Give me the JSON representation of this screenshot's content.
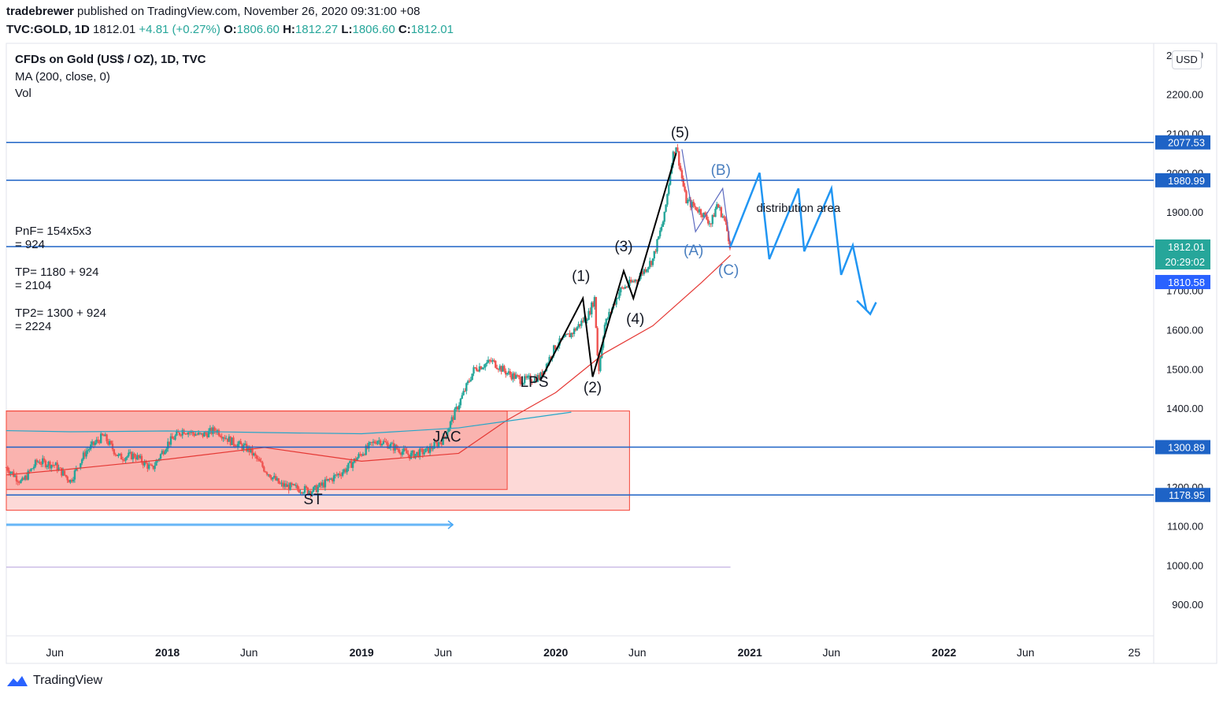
{
  "header": {
    "author": "tradebrewer",
    "published_text": "published on TradingView.com, November 26, 2020 09:31:00 +08",
    "symbol": "TVC:GOLD, 1D",
    "last": "1812.01",
    "change": "+4.81 (+0.27%)",
    "o_label": "O:",
    "o": "1806.60",
    "h_label": "H:",
    "h": "1812.27",
    "l_label": "L:",
    "l": "1806.60",
    "c_label": "C:",
    "c": "1812.01"
  },
  "legend": {
    "title": "CFDs on Gold (US$ / OZ), 1D, TVC",
    "ma": "MA (200, close, 0)",
    "vol": "Vol"
  },
  "currency_button": "USD",
  "notes": {
    "pnf_1": "PnF= 154x5x3",
    "pnf_2": "= 924",
    "tp_1": "TP= 1180 + 924",
    "tp_2": "= 2104",
    "tp2_1": "TP2= 1300 + 924",
    "tp2_2": "= 2224"
  },
  "footer": {
    "brand": "TradingView"
  },
  "colors": {
    "candle_up": "#26a69a",
    "candle_down": "#ef5350",
    "ma": "#e53935",
    "ma2": "#26a6c8",
    "hline": "#1e63c6",
    "projection": "#2196f3",
    "box": "#f44336"
  },
  "chart_data": {
    "type": "candlestick",
    "y_axis": {
      "tick_labels": [
        "900.00",
        "1000.00",
        "1100.00",
        "1200.00",
        "1300.00",
        "1400.00",
        "1500.00",
        "1600.00",
        "1700.00",
        "1800.00",
        "1900.00",
        "2000.00",
        "2100.00",
        "2200.00",
        "2300.00"
      ],
      "ylim": [
        820,
        2330
      ]
    },
    "x_axis": {
      "tick_labels": [
        "Jun",
        "2018",
        "Jun",
        "2019",
        "Jun",
        "2020",
        "Jun",
        "2021",
        "Jun",
        "2022",
        "Jun",
        "25"
      ],
      "tick_dates": [
        2017.42,
        2018.0,
        2018.42,
        2019.0,
        2019.42,
        2020.0,
        2020.42,
        2021.0,
        2021.42,
        2022.0,
        2022.42,
        2022.98
      ],
      "xlim": [
        2017.17,
        2023.08
      ]
    },
    "price_path": [
      [
        2017.17,
        1250
      ],
      [
        2017.25,
        1210
      ],
      [
        2017.33,
        1265
      ],
      [
        2017.42,
        1255
      ],
      [
        2017.5,
        1215
      ],
      [
        2017.58,
        1290
      ],
      [
        2017.67,
        1330
      ],
      [
        2017.75,
        1275
      ],
      [
        2017.83,
        1280
      ],
      [
        2017.92,
        1245
      ],
      [
        2018.0,
        1310
      ],
      [
        2018.08,
        1345
      ],
      [
        2018.17,
        1330
      ],
      [
        2018.25,
        1345
      ],
      [
        2018.33,
        1315
      ],
      [
        2018.42,
        1295
      ],
      [
        2018.5,
        1245
      ],
      [
        2018.58,
        1205
      ],
      [
        2018.67,
        1195
      ],
      [
        2018.75,
        1190
      ],
      [
        2018.83,
        1215
      ],
      [
        2018.92,
        1245
      ],
      [
        2019.0,
        1285
      ],
      [
        2019.08,
        1320
      ],
      [
        2019.17,
        1300
      ],
      [
        2019.25,
        1280
      ],
      [
        2019.33,
        1290
      ],
      [
        2019.42,
        1320
      ],
      [
        2019.5,
        1410
      ],
      [
        2019.58,
        1500
      ],
      [
        2019.67,
        1520
      ],
      [
        2019.75,
        1490
      ],
      [
        2019.83,
        1470
      ],
      [
        2019.92,
        1480
      ],
      [
        2020.0,
        1560
      ],
      [
        2020.08,
        1590
      ],
      [
        2020.17,
        1640
      ],
      [
        2020.2,
        1680
      ],
      [
        2020.22,
        1490
      ],
      [
        2020.25,
        1610
      ],
      [
        2020.33,
        1700
      ],
      [
        2020.42,
        1730
      ],
      [
        2020.5,
        1780
      ],
      [
        2020.56,
        1890
      ],
      [
        2020.6,
        2040
      ],
      [
        2020.62,
        2070
      ],
      [
        2020.67,
        1930
      ],
      [
        2020.75,
        1900
      ],
      [
        2020.8,
        1870
      ],
      [
        2020.83,
        1920
      ],
      [
        2020.87,
        1880
      ],
      [
        2020.9,
        1812
      ]
    ],
    "series": [
      {
        "name": "MA (200, close, 0)",
        "x": [
          2017.17,
          2017.5,
          2018.0,
          2018.5,
          2019.0,
          2019.5,
          2019.75,
          2020.0,
          2020.25,
          2020.5,
          2020.75,
          2020.9
        ],
        "y": [
          1230,
          1245,
          1270,
          1300,
          1265,
          1285,
          1370,
          1440,
          1540,
          1610,
          1720,
          1790
        ]
      },
      {
        "name": "",
        "x": [
          2017.17,
          2017.5,
          2018.0,
          2018.5,
          2019.0,
          2019.5,
          2020.08
        ],
        "y": [
          1343,
          1340,
          1342,
          1338,
          1335,
          1350,
          1390
        ]
      }
    ],
    "horizontal_levels": [
      {
        "label": "2077.53",
        "y": 2077.53
      },
      {
        "label": "1980.99",
        "y": 1980.99
      },
      {
        "label": "1812.01",
        "y": 1812.01
      },
      {
        "label": "1300.89",
        "y": 1300.89
      },
      {
        "label": "1178.95",
        "y": 1178.95
      }
    ],
    "price_labels": {
      "last": "1812.01",
      "countdown": "20:29:02",
      "prev": "1810.58",
      "prev_y": 1810.58
    },
    "boxes": [
      {
        "x0": 2017.17,
        "x1": 2019.75,
        "y0": 1193,
        "y1": 1393,
        "style": "dark"
      },
      {
        "x0": 2017.17,
        "x1": 2020.38,
        "y0": 1140,
        "y1": 1393,
        "style": "light"
      }
    ],
    "wave_lines": [
      [
        [
          2019.92,
          1470
        ],
        [
          2020.14,
          1680
        ],
        [
          2020.19,
          1480
        ],
        [
          2020.35,
          1750
        ],
        [
          2020.4,
          1680
        ],
        [
          2020.62,
          2050
        ]
      ],
      [
        [
          2020.65,
          2060
        ],
        [
          2020.72,
          1850
        ],
        [
          2020.86,
          1960
        ],
        [
          2020.9,
          1812
        ]
      ]
    ],
    "projection": [
      [
        2020.9,
        1812
      ],
      [
        2021.05,
        2000
      ],
      [
        2021.1,
        1780
      ],
      [
        2021.25,
        1960
      ],
      [
        2021.28,
        1800
      ],
      [
        2021.42,
        1960
      ],
      [
        2021.47,
        1740
      ],
      [
        2021.53,
        1815
      ],
      [
        2021.6,
        1650
      ],
      [
        2021.62,
        1640
      ],
      [
        2021.65,
        1670
      ]
    ],
    "arrow_line": {
      "x0": 2017.17,
      "x1": 2019.47,
      "y": 1103
    },
    "bottom_line": {
      "x0": 2017.17,
      "x1": 2020.9,
      "y": 995
    },
    "annotations": [
      {
        "text": "(5)",
        "x": 2020.64,
        "y": 2090,
        "color": "#131722"
      },
      {
        "text": "(B)",
        "x": 2020.85,
        "y": 1995,
        "color": "#4a7fbf"
      },
      {
        "text": "distribution area",
        "x": 2021.25,
        "y": 1900,
        "color": "#131722"
      },
      {
        "text": "(3)",
        "x": 2020.35,
        "y": 1800,
        "color": "#131722"
      },
      {
        "text": "(A)",
        "x": 2020.71,
        "y": 1790,
        "color": "#4a7fbf"
      },
      {
        "text": "(C)",
        "x": 2020.89,
        "y": 1740,
        "color": "#4a7fbf"
      },
      {
        "text": "(1)",
        "x": 2020.13,
        "y": 1725,
        "color": "#131722"
      },
      {
        "text": "(4)",
        "x": 2020.41,
        "y": 1615,
        "color": "#131722"
      },
      {
        "text": "LPS",
        "x": 2019.89,
        "y": 1455,
        "color": "#131722"
      },
      {
        "text": "(2)",
        "x": 2020.19,
        "y": 1440,
        "color": "#131722"
      },
      {
        "text": "JAC",
        "x": 2019.44,
        "y": 1315,
        "color": "#131722"
      },
      {
        "text": "ST",
        "x": 2018.75,
        "y": 1155,
        "color": "#131722"
      }
    ]
  }
}
